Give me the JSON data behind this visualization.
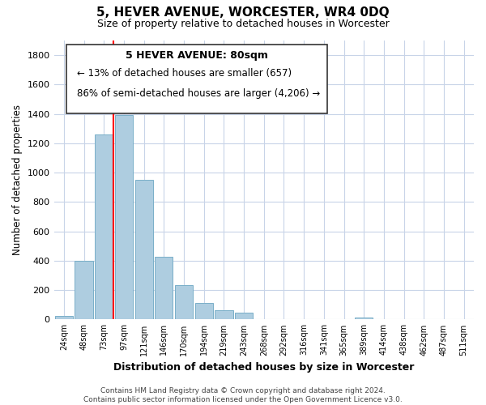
{
  "title": "5, HEVER AVENUE, WORCESTER, WR4 0DQ",
  "subtitle": "Size of property relative to detached houses in Worcester",
  "xlabel": "Distribution of detached houses by size in Worcester",
  "ylabel": "Number of detached properties",
  "bar_labels": [
    "24sqm",
    "48sqm",
    "73sqm",
    "97sqm",
    "121sqm",
    "146sqm",
    "170sqm",
    "194sqm",
    "219sqm",
    "243sqm",
    "268sqm",
    "292sqm",
    "316sqm",
    "341sqm",
    "365sqm",
    "389sqm",
    "414sqm",
    "438sqm",
    "462sqm",
    "487sqm",
    "511sqm"
  ],
  "bar_values": [
    25,
    400,
    1260,
    1390,
    950,
    425,
    235,
    110,
    65,
    45,
    5,
    0,
    0,
    0,
    0,
    15,
    0,
    0,
    0,
    0,
    0
  ],
  "bar_color": "#aecde0",
  "bar_edge_color": "#7aafc8",
  "annotation_title": "5 HEVER AVENUE: 80sqm",
  "annotation_line1": "← 13% of detached houses are smaller (657)",
  "annotation_line2": "86% of semi-detached houses are larger (4,206) →",
  "ylim": [
    0,
    1900
  ],
  "yticks": [
    0,
    200,
    400,
    600,
    800,
    1000,
    1200,
    1400,
    1600,
    1800
  ],
  "footer_line1": "Contains HM Land Registry data © Crown copyright and database right 2024.",
  "footer_line2": "Contains public sector information licensed under the Open Government Licence v3.0.",
  "bg_color": "#ffffff",
  "grid_color": "#c8d4e8"
}
